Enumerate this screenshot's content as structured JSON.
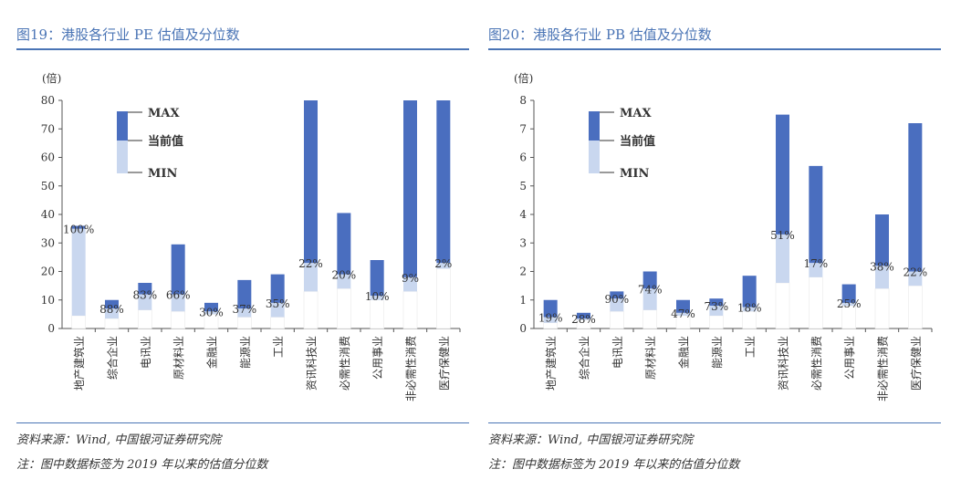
{
  "colors": {
    "max": "#4a6ebf",
    "current": "#c9d7ef",
    "min": "#ffffff",
    "axis": "#555555",
    "title": "#4a74b5"
  },
  "legend": {
    "max_label": "MAX",
    "current_label": "当前值",
    "min_label": "MIN"
  },
  "chart_data": [
    {
      "type": "bar",
      "title": "图19：港股各行业 PE 估值及分位数",
      "ylabel": "(倍)",
      "ylim": [
        0,
        80
      ],
      "yticks": [
        0,
        10,
        20,
        30,
        40,
        50,
        60,
        70,
        80
      ],
      "categories": [
        "地产建筑业",
        "综合企业",
        "电讯业",
        "原材料业",
        "金融业",
        "能源业",
        "工业",
        "资讯科技业",
        "必需性消费",
        "公用事业",
        "非必需性消费",
        "医疗保健业"
      ],
      "series": [
        {
          "name": "MIN",
          "values": [
            4.5,
            3.5,
            6.5,
            6,
            5,
            4,
            4,
            13,
            14,
            10,
            13,
            21
          ]
        },
        {
          "name": "当前值",
          "values": [
            35,
            7,
            12,
            12,
            6,
            7,
            9,
            23,
            19,
            11.5,
            18,
            23
          ]
        },
        {
          "name": "MAX",
          "values": [
            36,
            10,
            16,
            29.5,
            9,
            17,
            19,
            80,
            40.5,
            24,
            80,
            80
          ]
        }
      ],
      "percentiles": [
        "100%",
        "88%",
        "83%",
        "66%",
        "30%",
        "37%",
        "35%",
        "22%",
        "20%",
        "10%",
        "9%",
        "2%"
      ]
    },
    {
      "type": "bar",
      "title": "图20：港股各行业 PB 估值及分位数",
      "ylabel": "(倍)",
      "ylim": [
        0,
        8
      ],
      "yticks": [
        0,
        1,
        2,
        3,
        4,
        5,
        6,
        7,
        8
      ],
      "categories": [
        "地产建筑业",
        "综合企业",
        "电讯业",
        "原材料业",
        "金融业",
        "能源业",
        "工业",
        "资讯科技业",
        "必需性消费",
        "公用事业",
        "非必需性消费",
        "医疗保健业"
      ],
      "series": [
        {
          "name": "MIN",
          "values": [
            0.2,
            0.3,
            0.6,
            0.65,
            0.45,
            0.45,
            0.6,
            1.6,
            1.8,
            0.8,
            1.4,
            1.5
          ]
        },
        {
          "name": "当前值",
          "values": [
            0.4,
            0.35,
            1.05,
            1.4,
            0.55,
            0.8,
            0.75,
            3.3,
            2.3,
            0.9,
            2.2,
            2.0
          ]
        },
        {
          "name": "MAX",
          "values": [
            1.0,
            0.55,
            1.3,
            2.0,
            1.0,
            1.05,
            1.85,
            7.5,
            5.7,
            1.55,
            4.0,
            7.2
          ]
        }
      ],
      "percentiles": [
        "19%",
        "28%",
        "90%",
        "74%",
        "47%",
        "73%",
        "18%",
        "51%",
        "17%",
        "25%",
        "38%",
        "22%"
      ]
    }
  ],
  "notes": {
    "source": "资料来源：Wind, 中国银河证券研究院",
    "note": "注：图中数据标签为 2019 年以来的估值分位数"
  }
}
